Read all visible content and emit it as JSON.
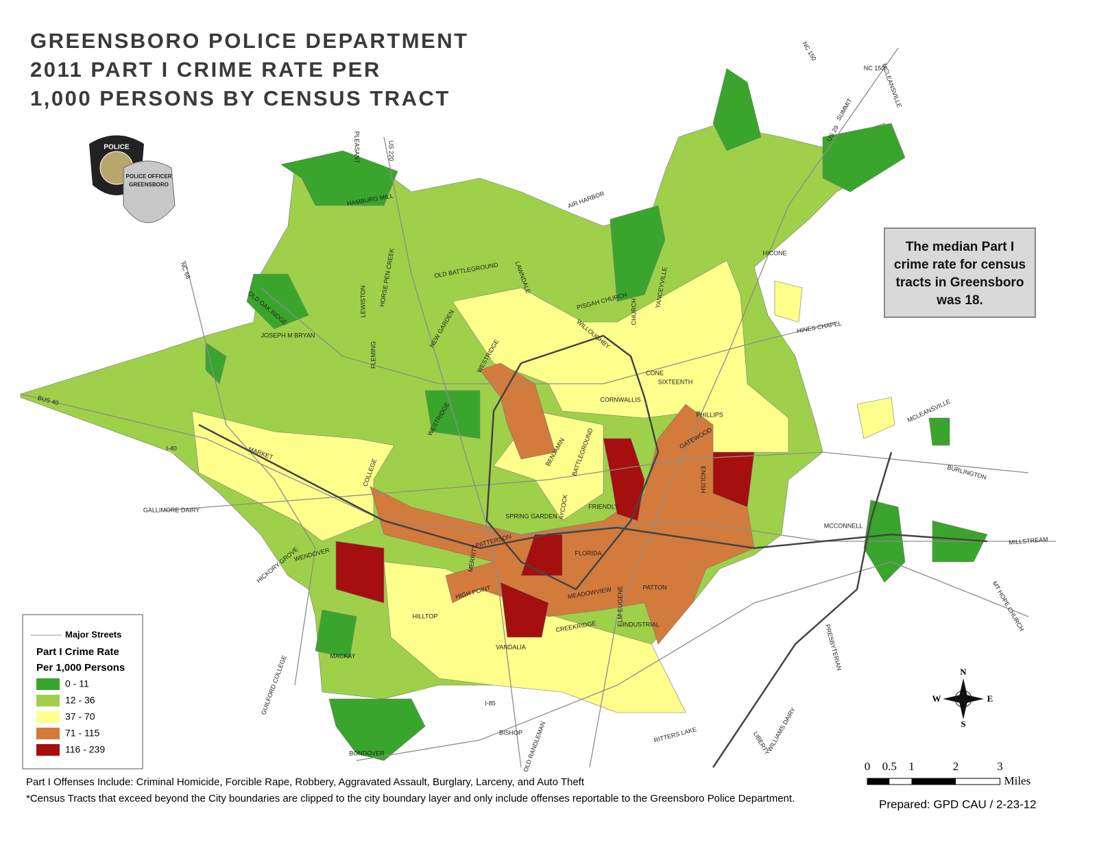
{
  "header": {
    "title_lines": [
      "GREENSBORO POLICE DEPARTMENT",
      "2011 PART I CRIME RATE PER",
      "1,000 PERSONS BY CENSUS TRACT"
    ]
  },
  "badge": {
    "texts": [
      "POLICE",
      "POLICE OFFICER",
      "GREENSBORO"
    ]
  },
  "callout": {
    "lines": [
      "The median Part I",
      "crime rate for census",
      "tracts in Greensboro",
      "was 18."
    ]
  },
  "legend": {
    "streets_label": "Major Streets",
    "title_lines": [
      "Part I Crime Rate",
      "Per 1,000 Persons"
    ],
    "classes": [
      {
        "label": "0 - 11",
        "color": "#3aa52c"
      },
      {
        "label": "12 - 36",
        "color": "#9fd04a"
      },
      {
        "label": "37 - 70",
        "color": "#ffff8c"
      },
      {
        "label": "71 - 115",
        "color": "#d27b3c"
      },
      {
        "label": "116 - 239",
        "color": "#a50f0f"
      }
    ]
  },
  "notes": [
    "Part I Offenses Include: Criminal Homicide, Forcible Rape, Robbery, Aggravated Assault, Burglary, Larceny, and Auto Theft",
    "*Census Tracts that exceed beyond the City boundaries are clipped to the city boundary layer and only include offenses reportable to the Greensboro Police Department."
  ],
  "scale_bar": {
    "ticks": [
      0,
      0.5,
      1,
      2,
      3
    ],
    "unit": "Miles"
  },
  "compass": {
    "n": "N",
    "e": "E",
    "s": "S",
    "w": "W"
  },
  "prepared": "Prepared: GPD CAU / 2-23-12",
  "streets": [
    "NC 150",
    "NC 150",
    "MCLEANSVILLE",
    "SUMMIT",
    "US 29",
    "PLEASANT",
    "US 220",
    "HAMBURG MILL",
    "AIR HARBOR",
    "HICONE",
    "HINES CHAPEL",
    "OLD BATTLEGROUND",
    "LAWNDALE",
    "CHURCH",
    "YANCEYVILLE",
    "PISGAH CHURCH",
    "NC 68",
    "OLD OAK RIDGE",
    "JOSEPH M BRYAN",
    "LEWISTON",
    "HORSE PEN CREEK",
    "FLEMING",
    "NEW GARDEN",
    "WESTRIDGE",
    "WILLOUGHBY",
    "CONE",
    "SIXTEENTH",
    "CORNWALLIS",
    "PHILLIPS",
    "GATEWOOD",
    "BUS 40",
    "MARKET",
    "I-40",
    "COLLEGE",
    "WESTRIDGE",
    "BENJAMIN",
    "FRIENDLY",
    "BATTLEGROUND",
    "SPRING GARDEN",
    "AYCOCK",
    "GALLIMORE DAIRY",
    "MCCONNELL",
    "BURLINGTON",
    "MILLSTREAM",
    "PATTERSON",
    "MERRITT",
    "HIGH POINT",
    "MEADOWVIEW",
    "PATTON",
    "FLORIDA",
    "INDUSTRIAL",
    "CREEKRIDGE",
    "VANDALIA",
    "HILLTOP",
    "MACKAY",
    "WENDOVER",
    "HICKORY GROVE",
    "GUILFORD COLLEGE",
    "BISHOP",
    "OLD RANDLEMAN",
    "BONDOVER",
    "RITTERS LAKE",
    "LIBERTY",
    "WILLIAMS DAIRY",
    "PRESBYTERIAN",
    "MT HOPE CHURCH",
    "MCLEANSVILLE",
    "I-85",
    "ENGLISH",
    "ELM-EUGENE"
  ]
}
